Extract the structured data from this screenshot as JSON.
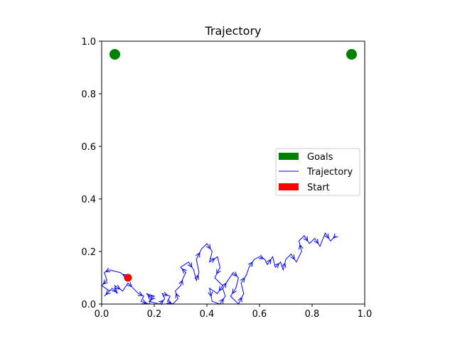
{
  "chart_data": {
    "type": "scatter",
    "title": "Trajectory",
    "xlabel": "",
    "ylabel": "",
    "xlim": [
      0,
      1
    ],
    "ylim": [
      0,
      1
    ],
    "xticks": [
      "0.0",
      "0.2",
      "0.4",
      "0.6",
      "0.8",
      "1.0"
    ],
    "yticks": [
      "0.0",
      "0.2",
      "0.4",
      "0.6",
      "0.8",
      "1.0"
    ],
    "grid": false,
    "legend": {
      "placement": "center-right",
      "entries": [
        {
          "label": "Goals",
          "color": "#008000",
          "kind": "patch"
        },
        {
          "label": "Trajectory",
          "color": "#0000ff",
          "kind": "line"
        },
        {
          "label": "Start",
          "color": "#ff0000",
          "kind": "patch"
        }
      ]
    },
    "series": [
      {
        "name": "Goals",
        "color": "#008000",
        "marker": "circle",
        "points": [
          [
            0.05,
            0.95
          ],
          [
            0.95,
            0.95
          ]
        ]
      },
      {
        "name": "Start",
        "color": "#ff0000",
        "marker": "circle",
        "points": [
          [
            0.1,
            0.1
          ]
        ]
      },
      {
        "name": "Trajectory",
        "color": "#0000ff",
        "style": "line-with-arrows",
        "points": [
          [
            0.1,
            0.1
          ],
          [
            0.07,
            0.12
          ],
          [
            0.03,
            0.13
          ],
          [
            0.01,
            0.12
          ],
          [
            0.02,
            0.09
          ],
          [
            0.0,
            0.07
          ],
          [
            0.03,
            0.05
          ],
          [
            0.01,
            0.03
          ],
          [
            0.04,
            0.06
          ],
          [
            0.06,
            0.04
          ],
          [
            0.05,
            0.07
          ],
          [
            0.08,
            0.05
          ],
          [
            0.1,
            0.08
          ],
          [
            0.12,
            0.06
          ],
          [
            0.14,
            0.04
          ],
          [
            0.16,
            0.03
          ],
          [
            0.15,
            0.01
          ],
          [
            0.18,
            0.0
          ],
          [
            0.19,
            0.02
          ],
          [
            0.17,
            0.04
          ],
          [
            0.2,
            0.03
          ],
          [
            0.18,
            0.01
          ],
          [
            0.22,
            0.0
          ],
          [
            0.24,
            0.02
          ],
          [
            0.23,
            0.04
          ],
          [
            0.26,
            0.03
          ],
          [
            0.25,
            0.01
          ],
          [
            0.27,
            0.0
          ],
          [
            0.29,
            0.02
          ],
          [
            0.28,
            0.05
          ],
          [
            0.3,
            0.07
          ],
          [
            0.31,
            0.1
          ],
          [
            0.32,
            0.12
          ],
          [
            0.3,
            0.14
          ],
          [
            0.33,
            0.16
          ],
          [
            0.35,
            0.13
          ],
          [
            0.36,
            0.09
          ],
          [
            0.37,
            0.12
          ],
          [
            0.36,
            0.17
          ],
          [
            0.38,
            0.21
          ],
          [
            0.4,
            0.23
          ],
          [
            0.42,
            0.2
          ],
          [
            0.41,
            0.16
          ],
          [
            0.44,
            0.18
          ],
          [
            0.45,
            0.14
          ],
          [
            0.43,
            0.1
          ],
          [
            0.46,
            0.07
          ],
          [
            0.44,
            0.04
          ],
          [
            0.41,
            0.06
          ],
          [
            0.42,
            0.01
          ],
          [
            0.45,
            0.0
          ],
          [
            0.47,
            0.03
          ],
          [
            0.46,
            0.06
          ],
          [
            0.48,
            0.09
          ],
          [
            0.5,
            0.12
          ],
          [
            0.52,
            0.1
          ],
          [
            0.51,
            0.06
          ],
          [
            0.49,
            0.03
          ],
          [
            0.52,
            0.0
          ],
          [
            0.54,
            0.04
          ],
          [
            0.53,
            0.08
          ],
          [
            0.55,
            0.11
          ],
          [
            0.56,
            0.14
          ],
          [
            0.58,
            0.17
          ],
          [
            0.6,
            0.18
          ],
          [
            0.62,
            0.17
          ],
          [
            0.63,
            0.15
          ],
          [
            0.65,
            0.18
          ],
          [
            0.66,
            0.14
          ],
          [
            0.68,
            0.16
          ],
          [
            0.69,
            0.13
          ],
          [
            0.7,
            0.17
          ],
          [
            0.72,
            0.19
          ],
          [
            0.74,
            0.16
          ],
          [
            0.76,
            0.2
          ],
          [
            0.75,
            0.24
          ],
          [
            0.77,
            0.26
          ],
          [
            0.79,
            0.23
          ],
          [
            0.81,
            0.25
          ],
          [
            0.83,
            0.22
          ],
          [
            0.85,
            0.27
          ],
          [
            0.87,
            0.24
          ],
          [
            0.89,
            0.26
          ],
          [
            0.88,
            0.25
          ]
        ]
      }
    ]
  }
}
